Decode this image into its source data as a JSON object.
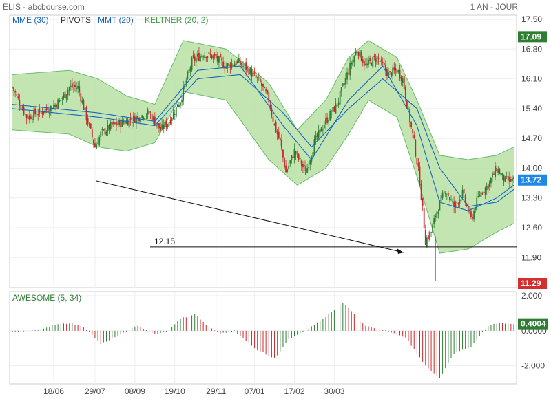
{
  "header": {
    "title": "ELIS - abcbourse.com",
    "period": "1 AN - JOUR"
  },
  "legend": [
    {
      "label": "MME (30)",
      "color": "#1565c0"
    },
    {
      "label": "PIVOTS",
      "color": "#333333"
    },
    {
      "label": "MMT (20)",
      "color": "#1565c0"
    },
    {
      "label": "KELTNER (20, 2)",
      "color": "#43a047"
    }
  ],
  "osc_title": "AWESOME (5, 34)",
  "colors": {
    "up": "#2e7d32",
    "down": "#c62828",
    "band_fill": "#b9e0a5",
    "band_line": "#66bb6a",
    "ma": "#1565c0"
  },
  "annotation": {
    "label": "12.15",
    "value": 12.15
  },
  "price_tags": [
    {
      "text": "17.09",
      "value": 17.09,
      "color": "#2e7d32"
    },
    {
      "text": "13.72",
      "value": 13.72,
      "color": "#1e88e5"
    },
    {
      "text": "11.29",
      "value": 11.29,
      "color": "#d32f2f"
    }
  ],
  "osc_tag": {
    "text": "0.4004",
    "value": 0.4004,
    "color": "#2e7d32"
  },
  "chart_data": [
    {
      "type": "candlestick",
      "title": "ELIS",
      "x_ticks": [
        "18/06",
        "29/07",
        "08/09",
        "19/10",
        "29/11",
        "07/01",
        "17/02",
        "30/03"
      ],
      "y_ticks": [
        "17.50",
        "16.80",
        "16.10",
        "15.40",
        "14.70",
        "14.00",
        "13.30",
        "12.60",
        "11.90"
      ],
      "ylim": [
        11.29,
        17.5
      ],
      "last": 13.72,
      "high": 17.09,
      "low": 11.29,
      "close_path": [
        [
          0,
          15.9
        ],
        [
          10,
          15.2
        ],
        [
          18,
          15.3
        ],
        [
          26,
          15.4
        ],
        [
          34,
          15.6
        ],
        [
          40,
          15.9
        ],
        [
          46,
          15.9
        ],
        [
          52,
          15.2
        ],
        [
          58,
          14.5
        ],
        [
          62,
          14.8
        ],
        [
          70,
          15.0
        ],
        [
          80,
          15.1
        ],
        [
          88,
          15.2
        ],
        [
          96,
          15.3
        ],
        [
          104,
          14.9
        ],
        [
          110,
          15.1
        ],
        [
          118,
          15.6
        ],
        [
          126,
          16.5
        ],
        [
          134,
          16.7
        ],
        [
          142,
          16.6
        ],
        [
          150,
          16.4
        ],
        [
          158,
          16.5
        ],
        [
          166,
          16.3
        ],
        [
          174,
          16.0
        ],
        [
          180,
          15.6
        ],
        [
          184,
          15.0
        ],
        [
          188,
          14.6
        ],
        [
          192,
          13.9
        ],
        [
          198,
          14.4
        ],
        [
          206,
          13.9
        ],
        [
          212,
          14.6
        ],
        [
          220,
          15.1
        ],
        [
          228,
          15.5
        ],
        [
          236,
          16.3
        ],
        [
          242,
          16.8
        ],
        [
          248,
          16.4
        ],
        [
          256,
          16.6
        ],
        [
          264,
          16.2
        ],
        [
          270,
          16.3
        ],
        [
          274,
          16.1
        ],
        [
          278,
          15.3
        ],
        [
          282,
          14.6
        ],
        [
          286,
          13.7
        ],
        [
          290,
          12.3
        ],
        [
          294,
          12.5
        ],
        [
          298,
          13.0
        ],
        [
          304,
          13.5
        ],
        [
          310,
          13.1
        ],
        [
          316,
          13.4
        ],
        [
          322,
          12.8
        ],
        [
          328,
          13.4
        ],
        [
          334,
          13.6
        ],
        [
          340,
          14.0
        ],
        [
          346,
          13.7
        ],
        [
          352,
          13.72
        ]
      ],
      "keltner_upper": [
        [
          0,
          16.2
        ],
        [
          40,
          16.3
        ],
        [
          60,
          16.1
        ],
        [
          80,
          15.7
        ],
        [
          100,
          15.5
        ],
        [
          120,
          17.0
        ],
        [
          150,
          16.8
        ],
        [
          180,
          16.0
        ],
        [
          200,
          14.9
        ],
        [
          220,
          15.6
        ],
        [
          236,
          16.6
        ],
        [
          250,
          17.0
        ],
        [
          270,
          16.6
        ],
        [
          284,
          15.6
        ],
        [
          300,
          14.3
        ],
        [
          320,
          14.2
        ],
        [
          340,
          14.3
        ],
        [
          352,
          14.5
        ]
      ],
      "keltner_lower": [
        [
          0,
          14.9
        ],
        [
          40,
          14.8
        ],
        [
          60,
          14.5
        ],
        [
          80,
          14.4
        ],
        [
          100,
          14.6
        ],
        [
          120,
          15.8
        ],
        [
          150,
          15.6
        ],
        [
          180,
          14.2
        ],
        [
          200,
          13.6
        ],
        [
          220,
          14.0
        ],
        [
          236,
          14.8
        ],
        [
          250,
          15.6
        ],
        [
          270,
          15.2
        ],
        [
          284,
          13.8
        ],
        [
          300,
          12.0
        ],
        [
          320,
          12.1
        ],
        [
          340,
          12.5
        ],
        [
          352,
          12.7
        ]
      ],
      "moving_averages": [
        {
          "name": "MME (30)",
          "points": [
            [
              0,
              15.4
            ],
            [
              60,
              15.2
            ],
            [
              100,
              15.0
            ],
            [
              130,
              16.1
            ],
            [
              160,
              16.2
            ],
            [
              190,
              15.3
            ],
            [
              210,
              14.5
            ],
            [
              236,
              15.4
            ],
            [
              260,
              16.1
            ],
            [
              284,
              15.4
            ],
            [
              300,
              14.0
            ],
            [
              320,
              13.1
            ],
            [
              340,
              13.2
            ],
            [
              352,
              13.5
            ]
          ]
        },
        {
          "name": "MMT (20)",
          "points": [
            [
              0,
              15.5
            ],
            [
              60,
              15.3
            ],
            [
              100,
              15.1
            ],
            [
              130,
              16.3
            ],
            [
              160,
              16.4
            ],
            [
              190,
              15.0
            ],
            [
              210,
              14.2
            ],
            [
              236,
              15.6
            ],
            [
              260,
              16.4
            ],
            [
              284,
              15.0
            ],
            [
              300,
              13.2
            ],
            [
              320,
              13.0
            ],
            [
              340,
              13.3
            ],
            [
              352,
              13.6
            ]
          ]
        }
      ]
    },
    {
      "type": "bar",
      "title": "AWESOME (5, 34)",
      "y_ticks": [
        "2.000",
        "0.0000",
        "-2.000"
      ],
      "ylim": [
        -2.8,
        2.0
      ],
      "last": 0.4004,
      "envelope": [
        [
          0,
          -0.1
        ],
        [
          18,
          0.05
        ],
        [
          30,
          0.35
        ],
        [
          42,
          0.45
        ],
        [
          52,
          0.1
        ],
        [
          62,
          -0.75
        ],
        [
          74,
          -0.3
        ],
        [
          88,
          0.3
        ],
        [
          100,
          -0.2
        ],
        [
          108,
          -0.05
        ],
        [
          118,
          0.7
        ],
        [
          128,
          0.95
        ],
        [
          138,
          0.2
        ],
        [
          146,
          -0.15
        ],
        [
          156,
          0.0
        ],
        [
          170,
          -1.0
        ],
        [
          184,
          -1.6
        ],
        [
          194,
          -0.5
        ],
        [
          206,
          0.0
        ],
        [
          220,
          0.8
        ],
        [
          232,
          1.6
        ],
        [
          238,
          1.1
        ],
        [
          248,
          0.3
        ],
        [
          262,
          0.0
        ],
        [
          276,
          -0.4
        ],
        [
          290,
          -2.0
        ],
        [
          300,
          -2.7
        ],
        [
          310,
          -1.3
        ],
        [
          322,
          -0.9
        ],
        [
          334,
          0.3
        ],
        [
          342,
          0.45
        ],
        [
          352,
          0.4004
        ]
      ]
    }
  ]
}
